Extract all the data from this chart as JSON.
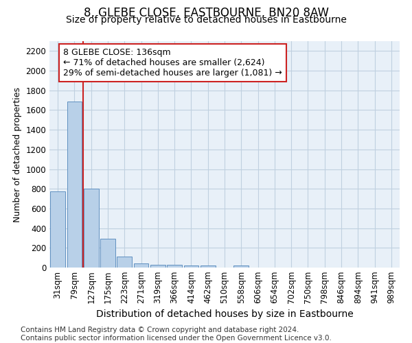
{
  "title": "8, GLEBE CLOSE, EASTBOURNE, BN20 8AW",
  "subtitle": "Size of property relative to detached houses in Eastbourne",
  "xlabel": "Distribution of detached houses by size in Eastbourne",
  "ylabel": "Number of detached properties",
  "categories": [
    "31sqm",
    "79sqm",
    "127sqm",
    "175sqm",
    "223sqm",
    "271sqm",
    "319sqm",
    "366sqm",
    "414sqm",
    "462sqm",
    "510sqm",
    "558sqm",
    "606sqm",
    "654sqm",
    "702sqm",
    "750sqm",
    "798sqm",
    "846sqm",
    "894sqm",
    "941sqm",
    "989sqm"
  ],
  "values": [
    775,
    1690,
    800,
    295,
    115,
    40,
    30,
    25,
    20,
    20,
    0,
    20,
    0,
    0,
    0,
    0,
    0,
    0,
    0,
    0,
    0
  ],
  "bar_color": "#b8d0e8",
  "bar_edge_color": "#6090c0",
  "marker_line_color": "#cc2222",
  "annotation_text": "8 GLEBE CLOSE: 136sqm\n← 71% of detached houses are smaller (2,624)\n29% of semi-detached houses are larger (1,081) →",
  "annotation_box_color": "#ffffff",
  "annotation_box_edge": "#cc2222",
  "ylim": [
    0,
    2300
  ],
  "yticks": [
    0,
    200,
    400,
    600,
    800,
    1000,
    1200,
    1400,
    1600,
    1800,
    2000,
    2200
  ],
  "footer": "Contains HM Land Registry data © Crown copyright and database right 2024.\nContains public sector information licensed under the Open Government Licence v3.0.",
  "grid_color": "#c0d0e0",
  "bg_color": "#e8f0f8",
  "title_fontsize": 12,
  "subtitle_fontsize": 10,
  "ylabel_fontsize": 9,
  "xlabel_fontsize": 10,
  "footer_fontsize": 7.5,
  "tick_fontsize": 8.5,
  "annot_fontsize": 9
}
